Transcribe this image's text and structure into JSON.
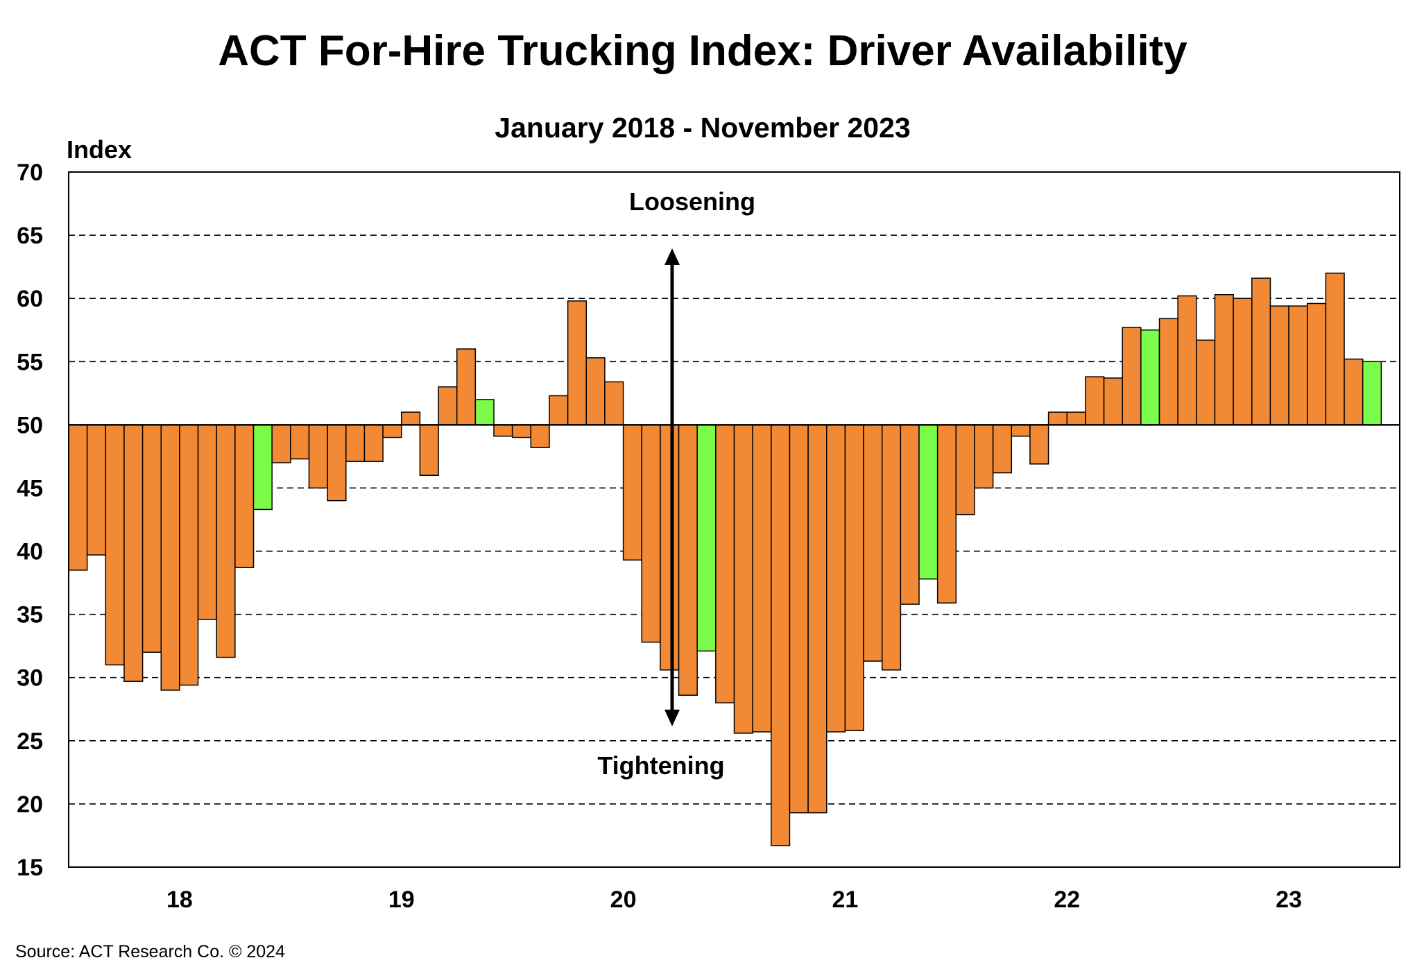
{
  "chart_data": {
    "type": "bar",
    "title": "ACT For-Hire Trucking Index: Driver Availability",
    "subtitle": "January 2018 - November 2023",
    "ylabel": "Index",
    "ylim": [
      15,
      70
    ],
    "yticks": [
      15,
      20,
      25,
      30,
      35,
      40,
      45,
      50,
      55,
      60,
      65,
      70
    ],
    "baseline": 50,
    "grid": "dashed-horizontal",
    "colors": {
      "default": "#F28A35",
      "highlight": "#7CFC4A"
    },
    "x_labels": [
      "18",
      "19",
      "20",
      "21",
      "22",
      "23"
    ],
    "annotations": {
      "up": "Loosening",
      "down": "Tightening"
    },
    "source": "Source:  ACT Research Co. © 2024",
    "values": [
      38.5,
      39.7,
      31.0,
      29.7,
      32.0,
      29.0,
      29.4,
      34.6,
      31.6,
      38.7,
      43.3,
      47.0,
      47.3,
      45.0,
      44.0,
      47.1,
      47.1,
      49.0,
      51.0,
      46.0,
      53.0,
      56.0,
      52.0,
      49.1,
      49.0,
      48.2,
      52.3,
      59.8,
      55.3,
      53.4,
      39.3,
      32.8,
      30.6,
      28.6,
      32.1,
      28.0,
      25.6,
      25.7,
      16.7,
      19.3,
      19.3,
      25.7,
      25.8,
      31.3,
      30.6,
      35.8,
      37.8,
      35.9,
      42.9,
      45.0,
      46.2,
      49.1,
      46.9,
      51.0,
      51.0,
      53.8,
      53.7,
      57.7,
      57.5,
      58.4,
      60.2,
      56.7,
      60.3,
      60.0,
      61.6,
      59.4,
      59.4,
      59.6,
      62.0,
      55.2,
      55.0
    ],
    "highlight_indices": [
      10,
      22,
      34,
      46,
      58,
      70
    ]
  }
}
